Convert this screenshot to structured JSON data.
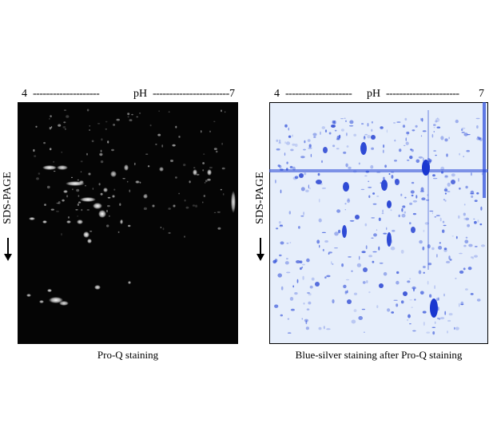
{
  "left_panel": {
    "ph_start": "4",
    "ph_dashes_left": "--------------------",
    "ph_label": "pH",
    "ph_dashes_right": "-----------------------",
    "ph_end": "7",
    "side_label": "SDS-PAGE",
    "caption": "Pro-Q staining",
    "background_color": "#050505",
    "spot_color": "#ffffff"
  },
  "right_panel": {
    "ph_start": "4",
    "ph_dashes_left": "--------------------",
    "ph_label": "pH",
    "ph_dashes_right": "----------------------",
    "ph_end": "7",
    "side_label": "SDS-PAGE",
    "caption": "Blue-silver staining after Pro-Q staining",
    "background_color": "#e6eefb",
    "spot_color": "#1f3fd6"
  }
}
